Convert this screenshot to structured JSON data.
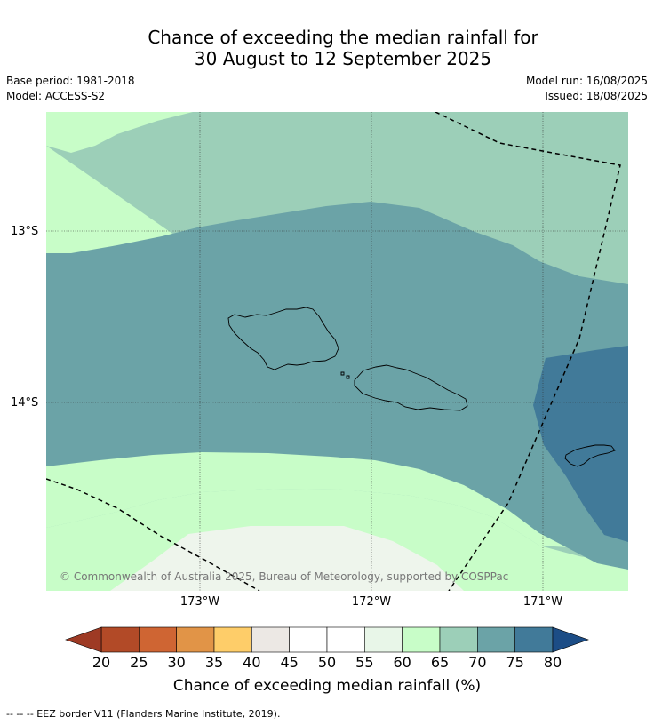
{
  "title_line1": "Chance of exceeding the median rainfall for",
  "title_line2": "30 August to 12 September 2025",
  "base_period": "Base period: 1981-2018",
  "model": "Model: ACCESS-S2",
  "model_run": "Model run: 16/08/2025",
  "issued": "Issued: 18/08/2025",
  "lat_labels": [
    "13°S",
    "14°S"
  ],
  "lon_labels": [
    "173°W",
    "172°W",
    "171°W"
  ],
  "copyright": "© Commonwealth of Australia 2025, Bureau of Meteorology, supported by COSPPac",
  "legend": {
    "title": "Chance of exceeding median rainfall (%)",
    "ticks": [
      "20",
      "25",
      "30",
      "35",
      "40",
      "45",
      "50",
      "55",
      "60",
      "65",
      "70",
      "75",
      "80"
    ],
    "colors": [
      "#b24a27",
      "#cf6533",
      "#e19447",
      "#fecd69",
      "#ece8e4",
      "#ffffff",
      "#ffffff",
      "#e8f6e8",
      "#c8fdc8",
      "#9ccfb8",
      "#6ba3a7",
      "#417a99"
    ],
    "under_color": "#9e3a24",
    "over_color": "#1c4d86"
  },
  "footnote": "--  --  -- EEZ border V11 (Flanders Marine Institute, 2019).",
  "map_colors": {
    "c60": "#c8fdc8",
    "c50": "#eef5ec",
    "c65": "#9ccfb8",
    "c70": "#6ba3a7",
    "c75": "#417a99"
  }
}
